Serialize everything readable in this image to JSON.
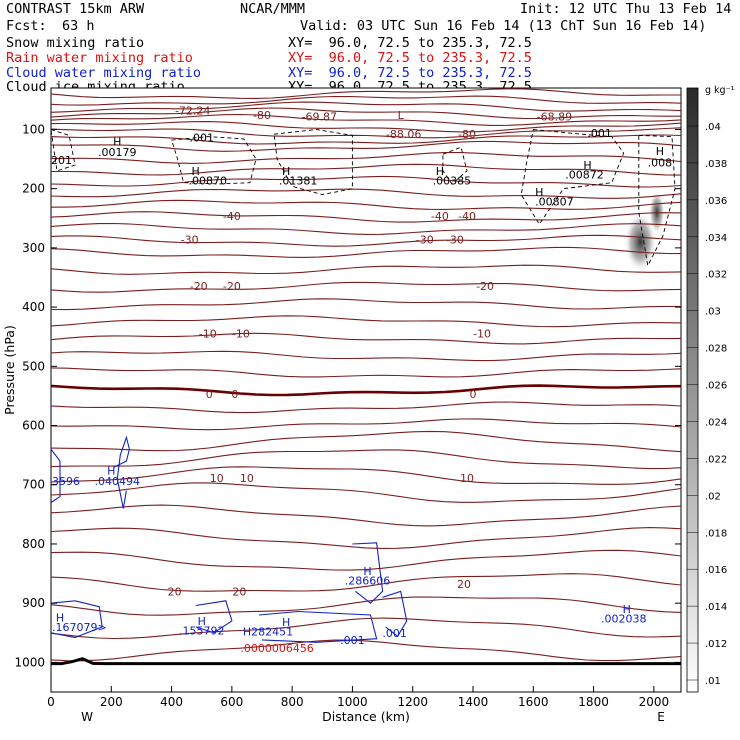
{
  "header": {
    "model": "CONTRAST 15km ARW",
    "org": "NCAR/MMM",
    "init": "Init: 12 UTC Thu 13 Feb 14",
    "fcst_label": "Fcst:",
    "fcst_value": "63 h",
    "valid": "Valid: 03 UTC Sun 16 Feb 14 (13 ChT Sun 16 Feb 14)",
    "fields": [
      {
        "name": "Snow mixing ratio",
        "xy": "XY=  96.0, 72.5 to 235.3, 72.5",
        "color": "#000000"
      },
      {
        "name": "Rain water mixing ratio",
        "xy": "XY=  96.0, 72.5 to 235.3, 72.5",
        "color": "#dd1111"
      },
      {
        "name": "Cloud water mixing ratio",
        "xy": "XY=  96.0, 72.5 to 235.3, 72.5",
        "color": "#1122cc"
      },
      {
        "name": "Cloud ice mixing ratio",
        "xy": "XY=  96.0, 72.5 to 235.3, 72.5",
        "color": "#000000"
      }
    ]
  },
  "chart_data": {
    "type": "contour",
    "xlabel": "Distance (km)",
    "ylabel": "Pressure (hPa)",
    "x_ticks": [
      0,
      200,
      400,
      600,
      800,
      1000,
      1200,
      1400,
      1600,
      1800,
      2000
    ],
    "y_ticks": [
      100,
      200,
      300,
      400,
      500,
      600,
      700,
      800,
      900,
      1000
    ],
    "xlim": [
      0,
      2090
    ],
    "ylim": [
      1050,
      30
    ],
    "y_scale": "linear, inverted",
    "x_end_labels": {
      "left": "W",
      "right": "E"
    },
    "temperature_contours": {
      "color": "#7a1f1f",
      "zero_color": "#6b0000",
      "levels": [
        {
          "p": 68,
          "label": "-72.24",
          "x": 470
        },
        {
          "p": 108,
          "label": "-88.06",
          "x": 1170
        },
        {
          "p": 78,
          "label": "-69.87",
          "x": 890
        },
        {
          "p": 78,
          "label": "-68.89",
          "x": 1670
        },
        {
          "p": 76,
          "label": "-80",
          "x": 700
        },
        {
          "p": 108,
          "label": "-80",
          "x": 1380
        },
        {
          "p": 246,
          "label": "-40",
          "x": 600
        },
        {
          "p": 246,
          "label": "-40",
          "x": 1290
        },
        {
          "p": 246,
          "label": "-40",
          "x": 1380
        },
        {
          "p": 286,
          "label": "-30",
          "x": 460
        },
        {
          "p": 286,
          "label": "-30",
          "x": 1240
        },
        {
          "p": 286,
          "label": "-30",
          "x": 1340
        },
        {
          "p": 364,
          "label": "-20",
          "x": 490
        },
        {
          "p": 364,
          "label": "-20",
          "x": 600
        },
        {
          "p": 364,
          "label": "-20",
          "x": 1440
        },
        {
          "p": 445,
          "label": "-10",
          "x": 520
        },
        {
          "p": 445,
          "label": "-10",
          "x": 630
        },
        {
          "p": 445,
          "label": "-10",
          "x": 1430
        },
        {
          "p": 547,
          "label": "0",
          "x": 525
        },
        {
          "p": 547,
          "label": "0",
          "x": 610
        },
        {
          "p": 547,
          "label": "0",
          "x": 1400
        },
        {
          "p": 689,
          "label": "10",
          "x": 550
        },
        {
          "p": 689,
          "label": "10",
          "x": 650
        },
        {
          "p": 689,
          "label": "10",
          "x": 1380
        },
        {
          "p": 880,
          "label": "20",
          "x": 410
        },
        {
          "p": 880,
          "label": "20",
          "x": 625
        },
        {
          "p": 868,
          "label": "20",
          "x": 1370
        }
      ],
      "ground_pressure": 1002
    },
    "snow_ice_annotations": [
      {
        "x": 220,
        "p": 138,
        "text": ".00179"
      },
      {
        "x": 520,
        "p": 186,
        "text": ".00870"
      },
      {
        "x": 820,
        "p": 186,
        "text": ".01381"
      },
      {
        "x": 1330,
        "p": 186,
        "text": ".00385"
      },
      {
        "x": 1770,
        "p": 176,
        "text": ".00872"
      },
      {
        "x": 1670,
        "p": 222,
        "text": ".00807"
      },
      {
        "x": 2020,
        "p": 156,
        "text": ".008"
      },
      {
        "x": 500,
        "p": 114,
        "text": ".001"
      },
      {
        "x": 1820,
        "p": 106,
        "text": ".001"
      },
      {
        "x": 0,
        "p": 152,
        "text": "201"
      }
    ],
    "cloud_water_annotations": [
      {
        "x": 0,
        "p": 694,
        "text": "3596"
      },
      {
        "x": 220,
        "p": 694,
        "text": ".040494"
      },
      {
        "x": 1050,
        "p": 862,
        "text": ".286606"
      },
      {
        "x": 0,
        "p": 940,
        "text": ".167079>"
      },
      {
        "x": 500,
        "p": 946,
        "text": ".155792"
      },
      {
        "x": 720,
        "p": 948,
        "text": "H282451"
      },
      {
        "x": 1000,
        "p": 962,
        "text": ".001"
      },
      {
        "x": 1140,
        "p": 950,
        "text": ".001"
      },
      {
        "x": 1900,
        "p": 926,
        "text": ".002038"
      }
    ],
    "rain_annotations": [
      {
        "x": 750,
        "p": 976,
        "text": ".0000006456"
      }
    ],
    "max_markers": [
      {
        "x": 220,
        "p": 120,
        "text": "H"
      },
      {
        "x": 480,
        "p": 170,
        "text": "H"
      },
      {
        "x": 780,
        "p": 170,
        "text": "H"
      },
      {
        "x": 1290,
        "p": 170,
        "text": "H"
      },
      {
        "x": 1780,
        "p": 160,
        "text": "H"
      },
      {
        "x": 1620,
        "p": 206,
        "text": "H"
      },
      {
        "x": 2020,
        "p": 136,
        "text": "H"
      },
      {
        "x": 30,
        "p": 924,
        "text": "H"
      },
      {
        "x": 200,
        "p": 676,
        "text": "H"
      },
      {
        "x": 1050,
        "p": 846,
        "text": "H"
      },
      {
        "x": 500,
        "p": 930,
        "text": "H"
      },
      {
        "x": 780,
        "p": 932,
        "text": "H"
      },
      {
        "x": 1910,
        "p": 910,
        "text": "H"
      },
      {
        "x": 1160,
        "p": 76,
        "text": "L"
      }
    ],
    "colorbar": {
      "unit": "g kg⁻¹",
      "ticks": [
        ".04",
        ".038",
        ".036",
        ".034",
        ".032",
        ".03",
        ".028",
        ".026",
        ".024",
        ".022",
        ".02",
        ".018",
        ".016",
        ".014",
        ".012",
        ".01"
      ]
    }
  }
}
